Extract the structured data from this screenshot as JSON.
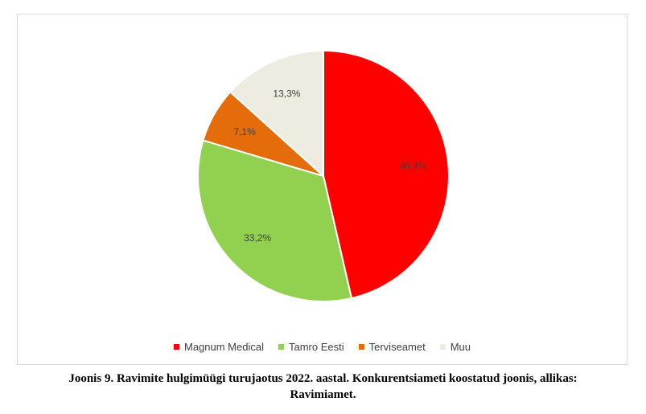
{
  "chart_data": {
    "type": "pie",
    "categories": [
      "Magnum Medical",
      "Tamro Eesti",
      "Terviseamet",
      "Muu"
    ],
    "values": [
      46.4,
      33.2,
      7.1,
      13.3
    ],
    "value_labels": [
      "46,4%",
      "33,2%",
      "7,1%",
      "13,3%"
    ],
    "colors": [
      "#ff0000",
      "#92d050",
      "#e46c0a",
      "#eeece1"
    ],
    "legend_position": "bottom",
    "start_angle": "12 o'clock",
    "direction": "clockwise"
  },
  "caption": {
    "line1": "Joonis 9. Ravimite hulgimüügi turujaotus 2022. aastal. Konkurentsiameti koostatud joonis, allikas:",
    "line2": "Ravimiamet."
  }
}
